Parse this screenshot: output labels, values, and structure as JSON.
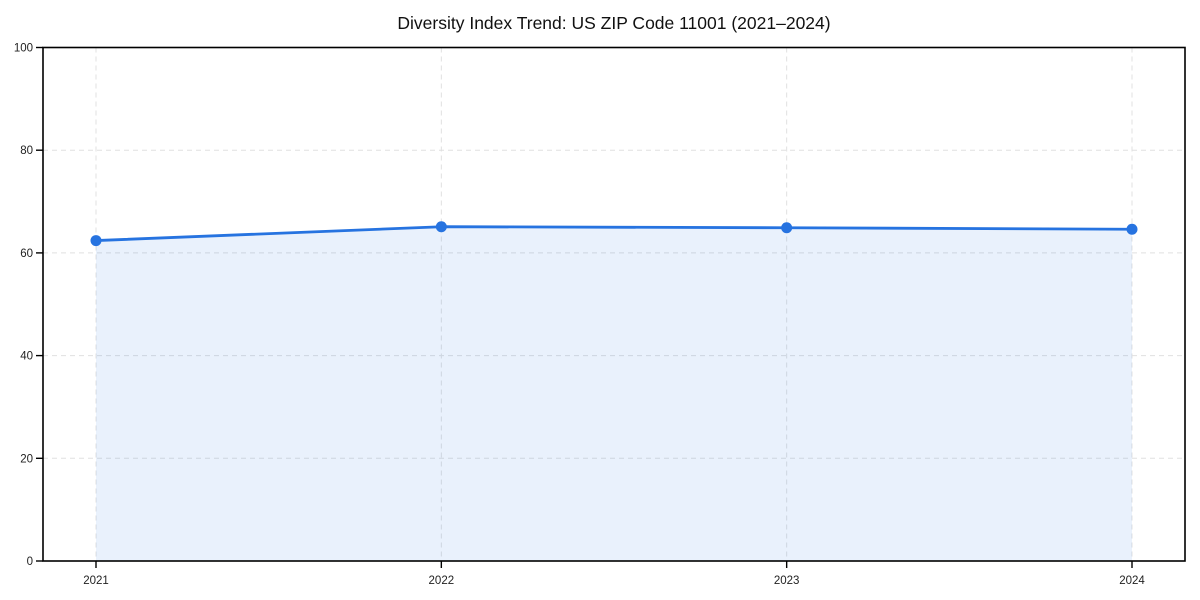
{
  "chart_data": {
    "type": "area",
    "title": "Diversity Index Trend: US ZIP Code 11001 (2021–2024)",
    "categories": [
      "2021",
      "2022",
      "2023",
      "2024"
    ],
    "values": [
      62.4,
      65.1,
      64.9,
      64.6
    ],
    "xlabel": "",
    "ylabel": "",
    "ylim": [
      0,
      100
    ],
    "yticks": [
      0,
      20,
      40,
      60,
      80,
      100
    ],
    "grid": true,
    "grid_style": "dashed",
    "legend": "none",
    "colors": {
      "line": "#2673e0",
      "marker": "#2673e0",
      "area_fill_rgba": "rgba(38,115,224,0.10)",
      "grid": "#e0e0e0",
      "axis": "#000000",
      "title_text": "#111111",
      "tick_text": "#222222",
      "background": "#ffffff"
    }
  }
}
